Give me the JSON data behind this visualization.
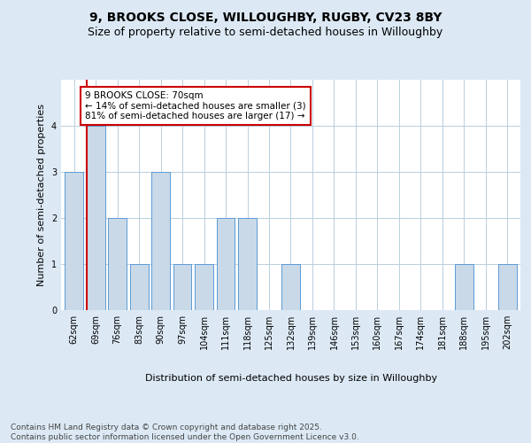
{
  "title_line1": "9, BROOKS CLOSE, WILLOUGHBY, RUGBY, CV23 8BY",
  "title_line2": "Size of property relative to semi-detached houses in Willoughby",
  "xlabel": "Distribution of semi-detached houses by size in Willoughby",
  "ylabel": "Number of semi-detached properties",
  "categories": [
    "62sqm",
    "69sqm",
    "76sqm",
    "83sqm",
    "90sqm",
    "97sqm",
    "104sqm",
    "111sqm",
    "118sqm",
    "125sqm",
    "132sqm",
    "139sqm",
    "146sqm",
    "153sqm",
    "160sqm",
    "167sqm",
    "174sqm",
    "181sqm",
    "188sqm",
    "195sqm",
    "202sqm"
  ],
  "values": [
    3,
    4,
    2,
    1,
    3,
    1,
    1,
    2,
    2,
    0,
    1,
    0,
    0,
    0,
    0,
    0,
    0,
    0,
    1,
    0,
    1
  ],
  "bar_color": "#c9d9e8",
  "bar_edge_color": "#5b9bd5",
  "highlight_index": 1,
  "highlight_line_color": "#cc0000",
  "annotation_text": "9 BROOKS CLOSE: 70sqm\n← 14% of semi-detached houses are smaller (3)\n81% of semi-detached houses are larger (17) →",
  "annotation_box_edge_color": "#cc0000",
  "annotation_box_face_color": "white",
  "ylim": [
    0,
    5
  ],
  "yticks": [
    0,
    1,
    2,
    3,
    4
  ],
  "footnote": "Contains HM Land Registry data © Crown copyright and database right 2025.\nContains public sector information licensed under the Open Government Licence v3.0.",
  "title_fontsize": 10,
  "subtitle_fontsize": 9,
  "axis_label_fontsize": 8,
  "tick_fontsize": 7,
  "annotation_fontsize": 7.5,
  "footnote_fontsize": 6.5,
  "background_color": "#dce9f5",
  "plot_bg_color": "white",
  "grid_color": "#b8cfe0"
}
